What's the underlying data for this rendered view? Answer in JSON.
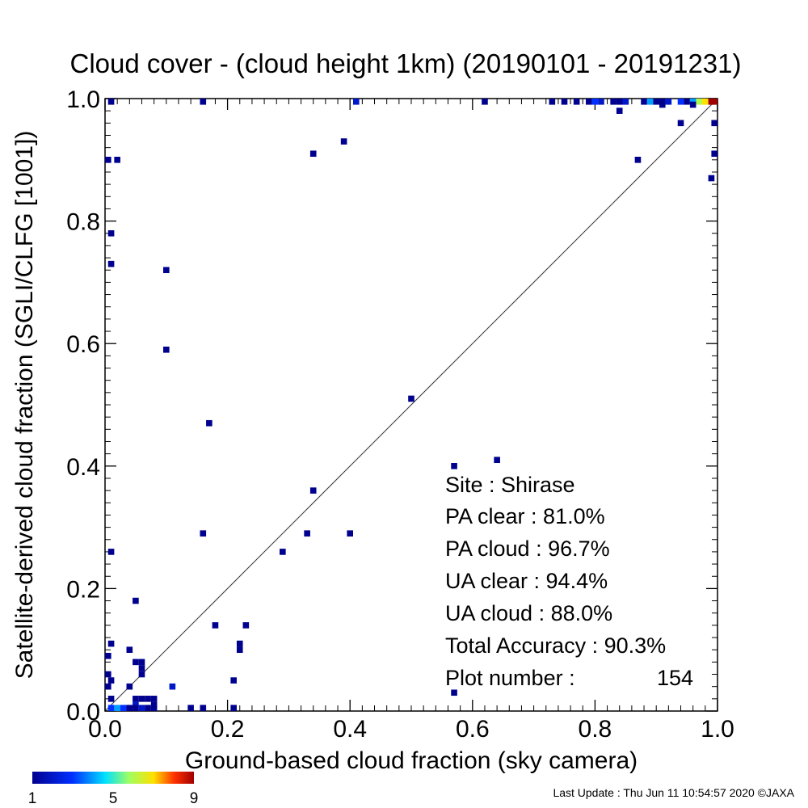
{
  "chart_data": {
    "type": "scatter",
    "title": "Cloud cover - (cloud height 1km)  (20190101 - 20191231)",
    "xlabel": "Ground-based cloud fraction (sky camera)",
    "ylabel": "Satellite-derived cloud fraction (SGLI/CLFG [1001])",
    "xlim": [
      0,
      1
    ],
    "ylim": [
      0,
      1
    ],
    "xticks": [
      "0.0",
      "0.2",
      "0.4",
      "0.6",
      "0.8",
      "1.0"
    ],
    "yticks": [
      "0.0",
      "0.2",
      "0.4",
      "0.6",
      "0.8",
      "1.0"
    ],
    "tick_values": [
      0,
      0.2,
      0.4,
      0.6,
      0.8,
      1.0
    ],
    "grid": false,
    "reference_line": "1:1 diagonal",
    "count_scale": {
      "min": 1,
      "max": 9,
      "labels": [
        "1",
        "5",
        "9"
      ]
    },
    "points": [
      {
        "x": 0.01,
        "y": 1.0,
        "c": 1
      },
      {
        "x": 0.16,
        "y": 1.0,
        "c": 1
      },
      {
        "x": 0.41,
        "y": 1.0,
        "c": 2
      },
      {
        "x": 0.62,
        "y": 1.0,
        "c": 1
      },
      {
        "x": 0.73,
        "y": 1.0,
        "c": 1
      },
      {
        "x": 0.75,
        "y": 1.0,
        "c": 1
      },
      {
        "x": 0.77,
        "y": 1.0,
        "c": 1
      },
      {
        "x": 0.79,
        "y": 1.0,
        "c": 1
      },
      {
        "x": 0.8,
        "y": 1.0,
        "c": 3
      },
      {
        "x": 0.81,
        "y": 1.0,
        "c": 2
      },
      {
        "x": 0.83,
        "y": 1.0,
        "c": 1
      },
      {
        "x": 0.84,
        "y": 1.0,
        "c": 1
      },
      {
        "x": 0.85,
        "y": 1.0,
        "c": 2
      },
      {
        "x": 0.88,
        "y": 1.0,
        "c": 1
      },
      {
        "x": 0.89,
        "y": 1.0,
        "c": 4
      },
      {
        "x": 0.9,
        "y": 1.0,
        "c": 1
      },
      {
        "x": 0.91,
        "y": 1.0,
        "c": 1
      },
      {
        "x": 0.92,
        "y": 1.0,
        "c": 2
      },
      {
        "x": 0.94,
        "y": 1.0,
        "c": 3
      },
      {
        "x": 0.95,
        "y": 1.0,
        "c": 1
      },
      {
        "x": 0.96,
        "y": 1.0,
        "c": 4
      },
      {
        "x": 0.97,
        "y": 1.0,
        "c": 6
      },
      {
        "x": 0.98,
        "y": 1.0,
        "c": 7
      },
      {
        "x": 0.99,
        "y": 1.0,
        "c": 9
      },
      {
        "x": 1.0,
        "y": 1.0,
        "c": 9
      },
      {
        "x": 0.84,
        "y": 0.98,
        "c": 1
      },
      {
        "x": 0.91,
        "y": 0.99,
        "c": 1
      },
      {
        "x": 0.96,
        "y": 0.99,
        "c": 1
      },
      {
        "x": 0.94,
        "y": 0.96,
        "c": 1
      },
      {
        "x": 1.0,
        "y": 0.96,
        "c": 1
      },
      {
        "x": 1.0,
        "y": 0.91,
        "c": 1
      },
      {
        "x": 0.99,
        "y": 0.87,
        "c": 1
      },
      {
        "x": 0.87,
        "y": 0.9,
        "c": 1
      },
      {
        "x": 0.0,
        "y": 0.9,
        "c": 1
      },
      {
        "x": 0.02,
        "y": 0.9,
        "c": 1
      },
      {
        "x": 0.34,
        "y": 0.91,
        "c": 1
      },
      {
        "x": 0.39,
        "y": 0.93,
        "c": 1
      },
      {
        "x": 0.01,
        "y": 0.78,
        "c": 1
      },
      {
        "x": 0.01,
        "y": 0.73,
        "c": 1
      },
      {
        "x": 0.1,
        "y": 0.72,
        "c": 1
      },
      {
        "x": 0.1,
        "y": 0.59,
        "c": 1
      },
      {
        "x": 0.5,
        "y": 0.51,
        "c": 1
      },
      {
        "x": 0.17,
        "y": 0.47,
        "c": 1
      },
      {
        "x": 0.57,
        "y": 0.4,
        "c": 1
      },
      {
        "x": 0.64,
        "y": 0.41,
        "c": 1
      },
      {
        "x": 0.34,
        "y": 0.36,
        "c": 1
      },
      {
        "x": 0.16,
        "y": 0.29,
        "c": 1
      },
      {
        "x": 0.33,
        "y": 0.29,
        "c": 1
      },
      {
        "x": 0.4,
        "y": 0.29,
        "c": 1
      },
      {
        "x": 0.29,
        "y": 0.26,
        "c": 1
      },
      {
        "x": 0.01,
        "y": 0.26,
        "c": 1
      },
      {
        "x": 0.05,
        "y": 0.18,
        "c": 1
      },
      {
        "x": 0.18,
        "y": 0.14,
        "c": 1
      },
      {
        "x": 0.23,
        "y": 0.14,
        "c": 1
      },
      {
        "x": 0.22,
        "y": 0.11,
        "c": 1
      },
      {
        "x": 0.22,
        "y": 0.1,
        "c": 1
      },
      {
        "x": 0.01,
        "y": 0.11,
        "c": 1
      },
      {
        "x": 0.04,
        "y": 0.1,
        "c": 1
      },
      {
        "x": 0.0,
        "y": 0.09,
        "c": 1
      },
      {
        "x": 0.05,
        "y": 0.08,
        "c": 1
      },
      {
        "x": 0.06,
        "y": 0.08,
        "c": 1
      },
      {
        "x": 0.06,
        "y": 0.07,
        "c": 1
      },
      {
        "x": 0.0,
        "y": 0.06,
        "c": 1
      },
      {
        "x": 0.06,
        "y": 0.06,
        "c": 1
      },
      {
        "x": 0.01,
        "y": 0.05,
        "c": 1
      },
      {
        "x": 0.21,
        "y": 0.05,
        "c": 1
      },
      {
        "x": 0.0,
        "y": 0.04,
        "c": 1
      },
      {
        "x": 0.04,
        "y": 0.04,
        "c": 1
      },
      {
        "x": 0.11,
        "y": 0.04,
        "c": 2
      },
      {
        "x": 0.57,
        "y": 0.03,
        "c": 1
      },
      {
        "x": 0.05,
        "y": 0.02,
        "c": 1
      },
      {
        "x": 0.06,
        "y": 0.02,
        "c": 1
      },
      {
        "x": 0.07,
        "y": 0.02,
        "c": 1
      },
      {
        "x": 0.08,
        "y": 0.02,
        "c": 1
      },
      {
        "x": 0.01,
        "y": 0.02,
        "c": 1
      },
      {
        "x": 0.05,
        "y": 0.01,
        "c": 2
      },
      {
        "x": 0.08,
        "y": 0.01,
        "c": 1
      },
      {
        "x": 0.01,
        "y": 0.0,
        "c": 3
      },
      {
        "x": 0.02,
        "y": 0.0,
        "c": 4
      },
      {
        "x": 0.03,
        "y": 0.0,
        "c": 3
      },
      {
        "x": 0.04,
        "y": 0.0,
        "c": 1
      },
      {
        "x": 0.05,
        "y": 0.0,
        "c": 1
      },
      {
        "x": 0.06,
        "y": 0.0,
        "c": 2
      },
      {
        "x": 0.07,
        "y": 0.0,
        "c": 1
      },
      {
        "x": 0.08,
        "y": 0.0,
        "c": 1
      },
      {
        "x": 0.14,
        "y": 0.0,
        "c": 1
      },
      {
        "x": 0.16,
        "y": 0.0,
        "c": 1
      },
      {
        "x": 0.21,
        "y": 0.0,
        "c": 1
      }
    ]
  },
  "stats": {
    "site": "Site : Shirase",
    "pa_clear": "PA clear :  81.0%",
    "pa_cloud": "PA cloud :  96.7%",
    "ua_clear": "UA clear :  94.4%",
    "ua_cloud": "UA cloud :  88.0%",
    "total_accuracy": "Total Accuracy :  90.3%",
    "plot_number_label": "Plot number :",
    "plot_number_value": "154"
  },
  "footer": {
    "last_update": "Last Update : Thu Jun 11 10:54:57 2020  ©JAXA"
  }
}
